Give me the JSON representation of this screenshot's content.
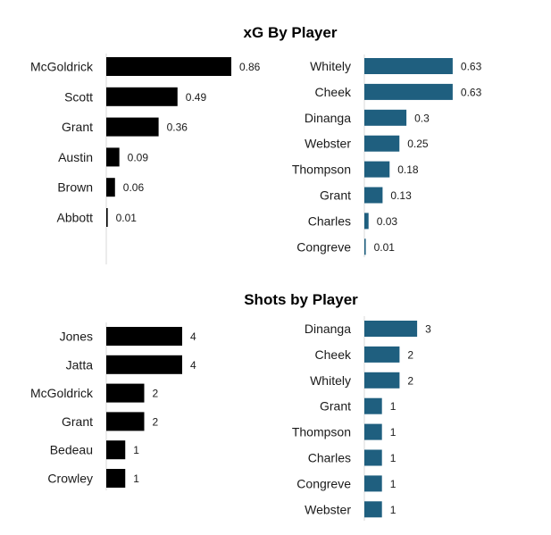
{
  "section_titles": {
    "xg": "xG By Player",
    "shots": "Shots by Player"
  },
  "colors": {
    "left_team": "#000000",
    "right_team": "#1f5f7f",
    "axis": "#d9d9d9"
  },
  "chart_data": [
    {
      "type": "bar",
      "orientation": "horizontal",
      "title": "xG By Player",
      "categories": [
        "McGoldrick",
        "Scott",
        "Grant",
        "Austin",
        "Brown",
        "Abbott"
      ],
      "values": [
        0.86,
        0.49,
        0.36,
        0.09,
        0.06,
        0.01
      ],
      "xlim": [
        0,
        1.0
      ],
      "color": "#000000"
    },
    {
      "type": "bar",
      "orientation": "horizontal",
      "title": "xG By Player",
      "categories": [
        "Whitely",
        "Cheek",
        "Dinanga",
        "Webster",
        "Thompson",
        "Grant",
        "Charles",
        "Congreve"
      ],
      "values": [
        0.63,
        0.63,
        0.3,
        0.25,
        0.18,
        0.13,
        0.03,
        0.01
      ],
      "xlim": [
        0,
        0.7
      ],
      "color": "#1f5f7f"
    },
    {
      "type": "bar",
      "orientation": "horizontal",
      "title": "Shots by Player",
      "categories": [
        "Jones",
        "Jatta",
        "McGoldrick",
        "Grant",
        "Bedeau",
        "Crowley"
      ],
      "values": [
        4,
        4,
        2,
        2,
        1,
        1
      ],
      "xlim": [
        0,
        4.5
      ],
      "color": "#000000"
    },
    {
      "type": "bar",
      "orientation": "horizontal",
      "title": "Shots by Player",
      "categories": [
        "Dinanga",
        "Cheek",
        "Whitely",
        "Grant",
        "Thompson",
        "Charles",
        "Congreve",
        "Webster"
      ],
      "values": [
        3,
        2,
        2,
        1,
        1,
        1,
        1,
        1
      ],
      "xlim": [
        0,
        3.5
      ],
      "color": "#1f5f7f"
    }
  ]
}
